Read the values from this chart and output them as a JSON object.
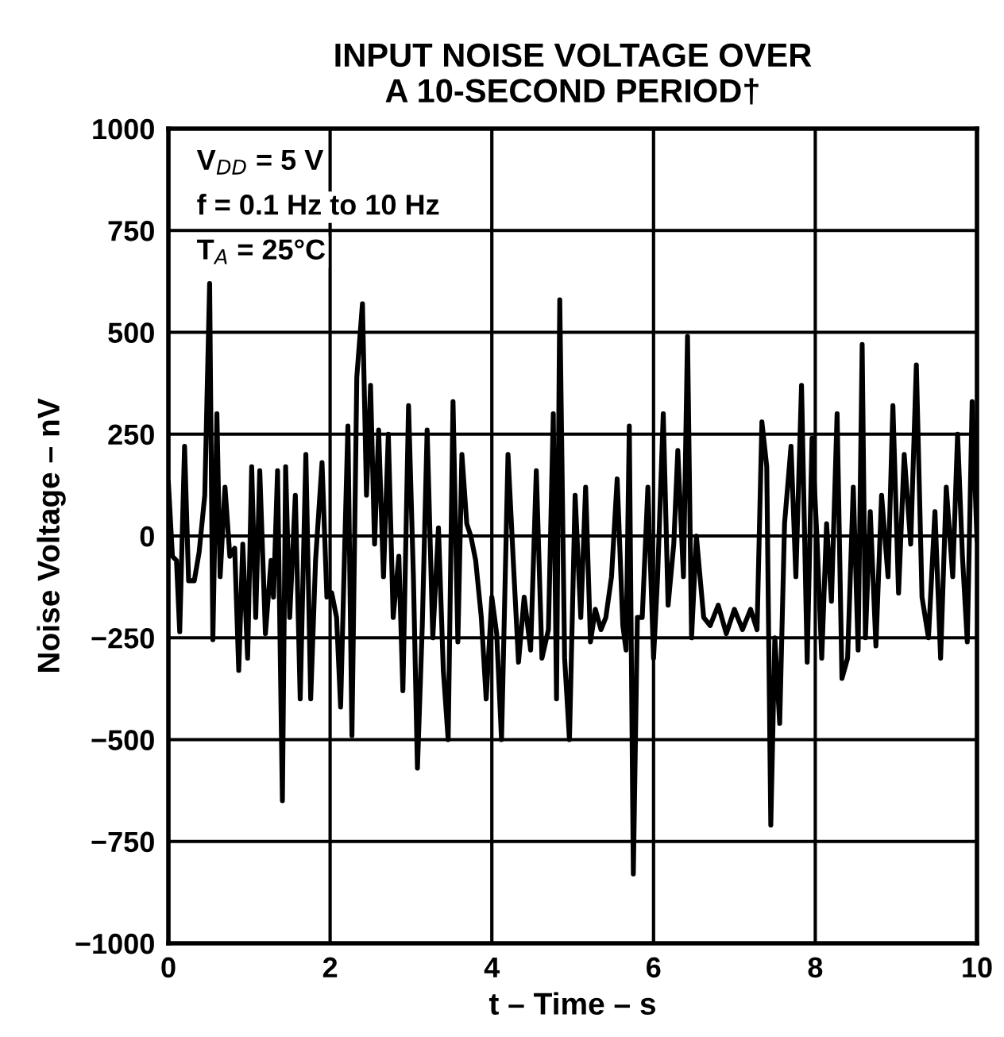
{
  "chart_data": {
    "type": "line",
    "title": "INPUT NOISE VOLTAGE OVER\nA 10-SECOND PERIOD†",
    "xlabel": "t – Time – s",
    "ylabel": "Noise Voltage – nV",
    "annotations": [
      "V$_{DD}$ = 5 V",
      "f = 0.1 Hz to 10 Hz",
      "T$_{A}$ = 25°C"
    ],
    "series": [
      {
        "color": "#000000",
        "x": [
          0.0,
          0.05,
          0.1,
          0.14,
          0.2,
          0.25,
          0.32,
          0.38,
          0.45,
          0.51,
          0.55,
          0.6,
          0.64,
          0.7,
          0.76,
          0.82,
          0.87,
          0.92,
          0.98,
          1.03,
          1.08,
          1.13,
          1.2,
          1.27,
          1.3,
          1.35,
          1.41,
          1.45,
          1.5,
          1.57,
          1.63,
          1.7,
          1.76,
          1.82,
          1.9,
          1.96,
          2.02,
          2.08,
          2.13,
          2.18,
          2.22,
          2.27,
          2.33,
          2.4,
          2.45,
          2.5,
          2.55,
          2.6,
          2.66,
          2.72,
          2.78,
          2.85,
          2.9,
          2.97,
          3.03,
          3.08,
          3.14,
          3.2,
          3.27,
          3.34,
          3.4,
          3.46,
          3.52,
          3.58,
          3.63,
          3.69,
          3.74,
          3.8,
          3.87,
          3.93,
          4.0,
          4.06,
          4.12,
          4.2,
          4.27,
          4.33,
          4.4,
          4.48,
          4.55,
          4.62,
          4.7,
          4.76,
          4.8,
          4.84,
          4.9,
          4.96,
          5.03,
          5.1,
          5.16,
          5.22,
          5.28,
          5.35,
          5.41,
          5.48,
          5.55,
          5.62,
          5.66,
          5.7,
          5.75,
          5.8,
          5.86,
          5.93,
          6.0,
          6.05,
          6.12,
          6.18,
          6.25,
          6.3,
          6.37,
          6.42,
          6.47,
          6.53,
          6.57,
          6.62,
          6.7,
          6.8,
          6.9,
          7.0,
          7.1,
          7.2,
          7.28,
          7.34,
          7.4,
          7.45,
          7.5,
          7.56,
          7.62,
          7.7,
          7.76,
          7.83,
          7.9,
          7.96,
          8.02,
          8.08,
          8.14,
          8.2,
          8.27,
          8.33,
          8.4,
          8.47,
          8.53,
          8.58,
          8.62,
          8.68,
          8.75,
          8.82,
          8.9,
          8.96,
          9.03,
          9.1,
          9.18,
          9.25,
          9.32,
          9.4,
          9.48,
          9.55,
          9.62,
          9.7,
          9.76,
          9.82,
          9.88,
          9.94,
          10.0
        ],
        "values": [
          130,
          -50,
          -60,
          -235,
          220,
          -110,
          -110,
          -40,
          100,
          620,
          -255,
          300,
          -100,
          120,
          -50,
          -30,
          -330,
          -20,
          -300,
          170,
          -200,
          160,
          -240,
          -60,
          -150,
          160,
          -650,
          170,
          -200,
          100,
          -400,
          200,
          -400,
          -60,
          180,
          -150,
          -140,
          -200,
          -420,
          -30,
          270,
          -490,
          390,
          570,
          100,
          370,
          -20,
          260,
          -100,
          250,
          -200,
          -50,
          -380,
          320,
          -100,
          -570,
          -220,
          260,
          -250,
          20,
          -330,
          -500,
          330,
          -260,
          200,
          30,
          0,
          -60,
          -200,
          -400,
          -150,
          -240,
          -500,
          200,
          -80,
          -310,
          -150,
          -280,
          160,
          -300,
          -230,
          300,
          -400,
          580,
          -300,
          -500,
          100,
          -200,
          120,
          -260,
          -180,
          -230,
          -200,
          -100,
          140,
          -220,
          -280,
          270,
          -830,
          -200,
          -200,
          120,
          -300,
          -100,
          300,
          -170,
          -20,
          210,
          -100,
          490,
          -250,
          0,
          -90,
          -200,
          -220,
          -170,
          -240,
          -180,
          -230,
          -180,
          -230,
          280,
          170,
          -710,
          -250,
          -460,
          30,
          220,
          -100,
          370,
          -310,
          240,
          0,
          -300,
          30,
          -160,
          300,
          -350,
          -300,
          120,
          -280,
          470,
          -250,
          60,
          -270,
          100,
          -100,
          320,
          -140,
          200,
          -20,
          420,
          -150,
          -250,
          60,
          -300,
          120,
          -100,
          250,
          -50,
          -260,
          330,
          -10
        ]
      }
    ],
    "xlim": [
      0,
      10
    ],
    "ylim": [
      -1000,
      1000
    ],
    "xticks": [
      0,
      2,
      4,
      6,
      8,
      10
    ],
    "yticks": [
      -1000,
      -750,
      -500,
      -250,
      0,
      250,
      500,
      750,
      1000
    ],
    "grid": true,
    "line_style": "solid",
    "marker": "none"
  }
}
